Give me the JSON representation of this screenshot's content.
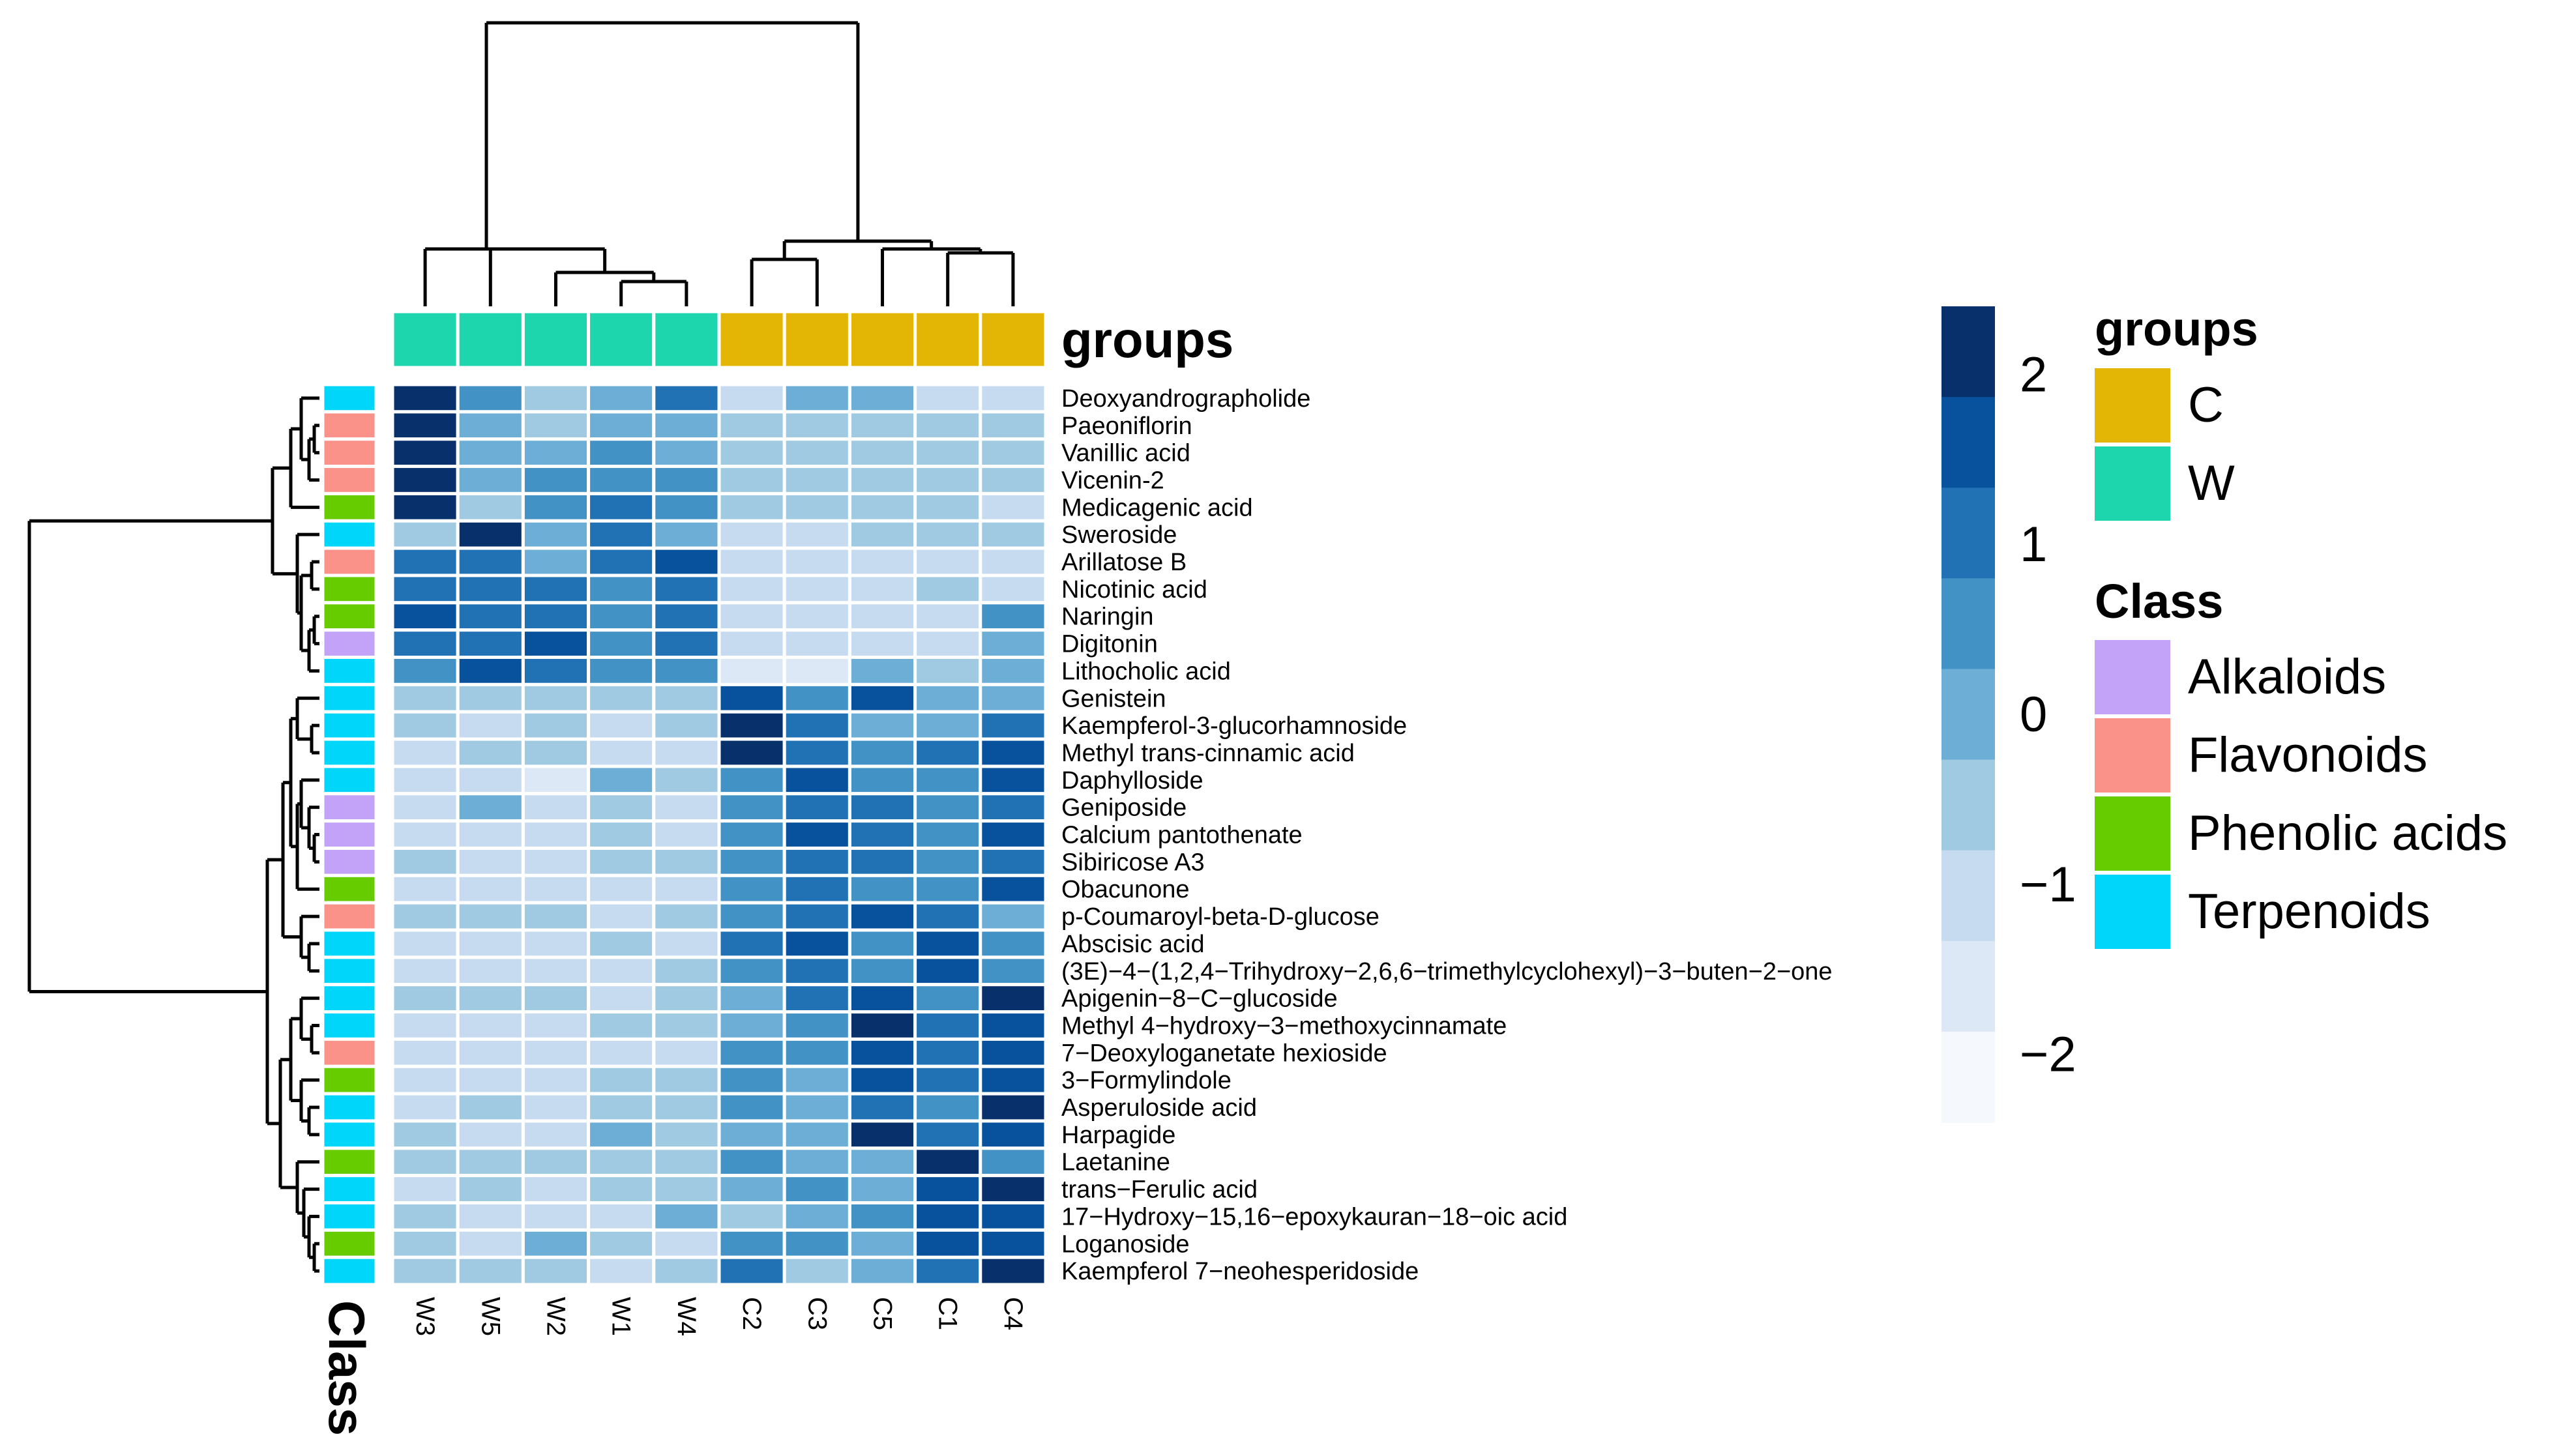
{
  "chart_data": {
    "type": "heatmap",
    "title": "",
    "columns": [
      "W3",
      "W5",
      "W2",
      "W1",
      "W4",
      "C2",
      "C3",
      "C5",
      "C1",
      "C4"
    ],
    "column_groups": [
      "W",
      "W",
      "W",
      "W",
      "W",
      "C",
      "C",
      "C",
      "C",
      "C"
    ],
    "rows": [
      {
        "name": "Deoxyandrographolide",
        "class": "Terpenoids",
        "values": [
          2.2,
          0.3,
          -0.5,
          0.0,
          0.8,
          -1.1,
          0.1,
          0.1,
          -1.1,
          -1.1
        ]
      },
      {
        "name": "Paeoniflorin",
        "class": "Flavonoids",
        "values": [
          2.4,
          0.0,
          -0.4,
          0.2,
          0.0,
          -0.6,
          -0.6,
          -0.6,
          -0.6,
          -0.6
        ]
      },
      {
        "name": "Vanillic acid",
        "class": "Flavonoids",
        "values": [
          2.3,
          -0.1,
          0.0,
          0.3,
          0.0,
          -0.6,
          -0.6,
          -0.6,
          -0.6,
          -0.6
        ]
      },
      {
        "name": "Vicenin-2",
        "class": "Flavonoids",
        "values": [
          2.3,
          0.0,
          0.6,
          0.6,
          0.6,
          -0.6,
          -0.6,
          -0.6,
          -0.6,
          -0.6
        ]
      },
      {
        "name": "Medicagenic acid",
        "class": "Phenolic acids",
        "values": [
          2.3,
          -0.4,
          0.3,
          0.8,
          0.3,
          -0.6,
          -0.7,
          -0.5,
          -0.6,
          -0.9
        ]
      },
      {
        "name": "Sweroside",
        "class": "Terpenoids",
        "values": [
          -0.6,
          2.4,
          0.0,
          1.0,
          0.0,
          -1.0,
          -1.0,
          -0.6,
          -0.6,
          -0.6
        ]
      },
      {
        "name": "Arillatose B",
        "class": "Flavonoids",
        "values": [
          1.0,
          1.1,
          0.0,
          0.8,
          1.6,
          -1.1,
          -1.1,
          -1.1,
          -1.1,
          -1.1
        ]
      },
      {
        "name": "Nicotinic acid",
        "class": "Phenolic acids",
        "values": [
          1.2,
          1.1,
          1.3,
          0.6,
          1.3,
          -1.0,
          -1.0,
          -1.0,
          -0.8,
          -1.0
        ]
      },
      {
        "name": "Naringin",
        "class": "Phenolic acids",
        "values": [
          1.5,
          1.2,
          0.8,
          0.6,
          1.3,
          -1.1,
          -1.1,
          -1.0,
          -0.9,
          0.5
        ]
      },
      {
        "name": "Digitonin",
        "class": "Alkaloids",
        "values": [
          1.1,
          1.2,
          1.8,
          0.6,
          1.2,
          -1.1,
          -1.1,
          -1.1,
          -0.9,
          0.1
        ]
      },
      {
        "name": "Lithocholic acid",
        "class": "Terpenoids",
        "values": [
          0.6,
          1.6,
          1.1,
          0.7,
          0.6,
          -1.5,
          -1.5,
          -0.1,
          -0.6,
          0.0
        ]
      },
      {
        "name": "Genistein",
        "class": "Terpenoids",
        "values": [
          -0.7,
          -0.7,
          -0.7,
          -0.7,
          -0.7,
          1.8,
          0.5,
          1.5,
          -0.1,
          0.1
        ]
      },
      {
        "name": "Kaempferol-3-glucorhamnoside",
        "class": "Terpenoids",
        "values": [
          -0.6,
          -1.0,
          -0.6,
          -1.0,
          -0.6,
          2.4,
          1.2,
          0.2,
          0.2,
          1.2
        ]
      },
      {
        "name": "Methyl trans-cinnamic acid",
        "class": "Terpenoids",
        "values": [
          -1.0,
          -0.6,
          -0.4,
          -1.0,
          -1.0,
          2.4,
          1.3,
          0.5,
          0.9,
          1.5
        ]
      },
      {
        "name": "Daphylloside",
        "class": "Terpenoids",
        "values": [
          -1.0,
          -1.0,
          -1.5,
          -0.2,
          -0.5,
          0.6,
          1.5,
          0.5,
          0.3,
          1.6
        ]
      },
      {
        "name": "Geniposide",
        "class": "Alkaloids",
        "values": [
          -1.0,
          0.0,
          -1.0,
          -0.5,
          -1.0,
          0.5,
          1.2,
          1.3,
          0.5,
          1.2
        ]
      },
      {
        "name": "Calcium pantothenate",
        "class": "Alkaloids",
        "values": [
          -1.0,
          -1.0,
          -1.0,
          -0.6,
          -1.0,
          0.6,
          1.6,
          1.1,
          0.6,
          1.5
        ]
      },
      {
        "name": "Sibiricose A3",
        "class": "Alkaloids",
        "values": [
          -0.6,
          -1.0,
          -1.0,
          -0.6,
          -0.6,
          0.7,
          1.3,
          0.9,
          0.7,
          1.2
        ]
      },
      {
        "name": "Obacunone",
        "class": "Phenolic acids",
        "values": [
          -1.0,
          -1.0,
          -1.0,
          -1.0,
          -1.0,
          0.7,
          0.9,
          0.6,
          0.5,
          1.8
        ]
      },
      {
        "name": "p-Coumaroyl-beta-D-glucose",
        "class": "Flavonoids",
        "values": [
          -0.6,
          -0.6,
          -0.5,
          -1.0,
          -0.6,
          0.5,
          1.2,
          1.6,
          1.2,
          0.2
        ]
      },
      {
        "name": "Abscisic acid",
        "class": "Terpenoids",
        "values": [
          -1.0,
          -1.0,
          -1.0,
          -0.6,
          -1.0,
          1.2,
          1.6,
          0.5,
          1.4,
          0.6
        ]
      },
      {
        "name": "(3E)−4−(1,2,4−Trihydroxy−2,6,6−trimethylcyclohexyl)−3−buten−2−one",
        "class": "Terpenoids",
        "values": [
          -1.0,
          -1.0,
          -1.0,
          -1.0,
          -0.6,
          0.5,
          0.9,
          0.5,
          1.6,
          0.6
        ]
      },
      {
        "name": "Apigenin−8−C−glucoside",
        "class": "Terpenoids",
        "values": [
          -0.6,
          -0.6,
          -0.5,
          -1.0,
          -0.6,
          0.2,
          0.9,
          1.6,
          0.6,
          2.4
        ]
      },
      {
        "name": "Methyl 4−hydroxy−3−methoxycinnamate",
        "class": "Terpenoids",
        "values": [
          -1.0,
          -1.0,
          -1.0,
          -0.6,
          -0.6,
          0.1,
          0.6,
          2.4,
          0.8,
          1.8
        ]
      },
      {
        "name": "7−Deoxyloganetate hexioside",
        "class": "Flavonoids",
        "values": [
          -1.0,
          -1.0,
          -1.0,
          -1.0,
          -1.0,
          0.7,
          0.5,
          1.6,
          1.2,
          1.6
        ]
      },
      {
        "name": "3−Formylindole",
        "class": "Phenolic acids",
        "values": [
          -1.0,
          -1.0,
          -1.0,
          -0.6,
          -0.6,
          0.7,
          0.2,
          1.6,
          1.2,
          1.6
        ]
      },
      {
        "name": "Asperuloside acid",
        "class": "Terpenoids",
        "values": [
          -1.0,
          -0.6,
          -1.0,
          -0.6,
          -0.6,
          0.5,
          0.0,
          1.2,
          0.6,
          2.4
        ]
      },
      {
        "name": "Harpagide",
        "class": "Terpenoids",
        "values": [
          -0.6,
          -1.0,
          -1.0,
          0.1,
          -0.5,
          0.1,
          0.1,
          2.4,
          0.8,
          1.6
        ]
      },
      {
        "name": "Laetanine",
        "class": "Phenolic acids",
        "values": [
          -0.6,
          -0.6,
          -0.6,
          -0.6,
          -0.6,
          0.5,
          0.2,
          0.2,
          2.4,
          0.6
        ]
      },
      {
        "name": "trans−Ferulic acid",
        "class": "Terpenoids",
        "values": [
          -1.0,
          -0.6,
          -1.0,
          -0.6,
          -0.6,
          0.2,
          0.6,
          0.2,
          1.5,
          2.4
        ]
      },
      {
        "name": "17−Hydroxy−15,16−epoxykauran−18−oic acid",
        "class": "Terpenoids",
        "values": [
          -0.6,
          -1.0,
          -1.0,
          -1.0,
          0.2,
          -0.6,
          0.1,
          0.6,
          1.6,
          1.8
        ]
      },
      {
        "name": "Loganoside",
        "class": "Phenolic acids",
        "values": [
          -0.6,
          -1.0,
          0.2,
          -0.6,
          -1.0,
          0.3,
          0.5,
          0.0,
          1.8,
          1.6
        ]
      },
      {
        "name": "Kaempferol 7−neohesperidoside",
        "class": "Terpenoids",
        "values": [
          -0.6,
          -0.6,
          -0.6,
          -1.0,
          -0.6,
          1.2,
          -0.4,
          0.2,
          1.2,
          2.4
        ]
      }
    ],
    "scale": {
      "min": -2.4,
      "max": 2.4,
      "ticks": [
        2,
        1,
        0,
        -1,
        -2
      ],
      "tick_labels": [
        "2",
        "1",
        "0",
        "−1",
        "−2"
      ]
    },
    "annotations": {
      "groups": {
        "title": "groups",
        "legend": [
          {
            "label": "C",
            "color": "#E3B505"
          },
          {
            "label": "W",
            "color": "#1DD6AE"
          }
        ]
      },
      "class": {
        "title": "Class",
        "legend": [
          {
            "label": "Alkaloids",
            "color": "#C3A3F7"
          },
          {
            "label": "Flavonoids",
            "color": "#FA928A"
          },
          {
            "label": "Phenolic acids",
            "color": "#66CC00"
          },
          {
            "label": "Terpenoids",
            "color": "#00D5FA"
          }
        ]
      }
    },
    "palette": [
      "#F5F9FE",
      "#DCE8F5",
      "#C6DBEF",
      "#9FCAE1",
      "#6CAED6",
      "#4292C6",
      "#2171B5",
      "#08519C",
      "#08306B"
    ]
  },
  "labels": {
    "groups_ann_title": "groups",
    "class_ann_title": "Class",
    "legend_groups_title": "groups",
    "legend_class_title": "Class"
  }
}
